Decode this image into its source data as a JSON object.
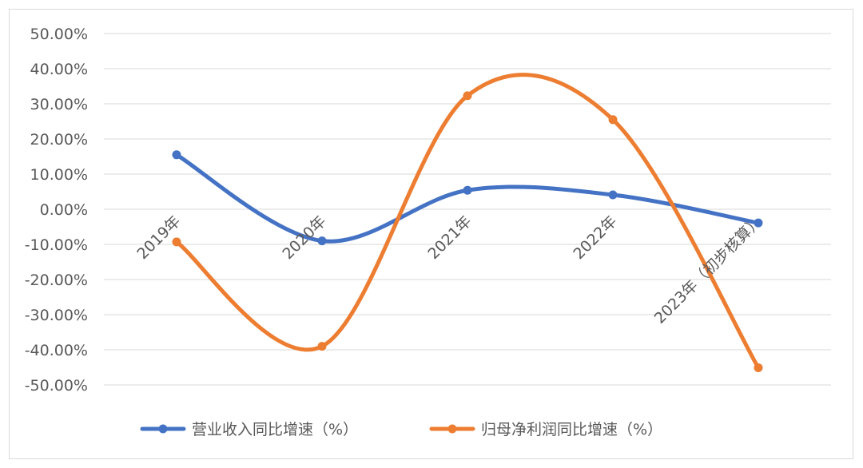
{
  "chart_data": {
    "type": "line",
    "smooth": true,
    "categories": [
      "2019年",
      "2020年",
      "2021年",
      "2022年",
      "2023年（初步核算）"
    ],
    "series": [
      {
        "name": "营业收入同比增速（%）",
        "color": "#4472c4",
        "values": [
          15.5,
          -9.0,
          5.4,
          4.1,
          -3.9
        ]
      },
      {
        "name": "归母净利润同比增速（%）",
        "color": "#ed7d31",
        "values": [
          -9.3,
          -39.0,
          32.3,
          25.5,
          -45.1
        ]
      }
    ],
    "ylim": [
      -50,
      50
    ],
    "yticks": [
      50,
      40,
      30,
      20,
      10,
      0,
      -10,
      -20,
      -30,
      -40,
      -50
    ],
    "ytick_labels": [
      "50.00%",
      "40.00%",
      "30.00%",
      "20.00%",
      "10.00%",
      "0.00%",
      "-10.00%",
      "-20.00%",
      "-30.00%",
      "-40.00%",
      "-50.00%"
    ],
    "grid": true,
    "legend": "bottom",
    "title": "",
    "xlabel": "",
    "ylabel": ""
  }
}
